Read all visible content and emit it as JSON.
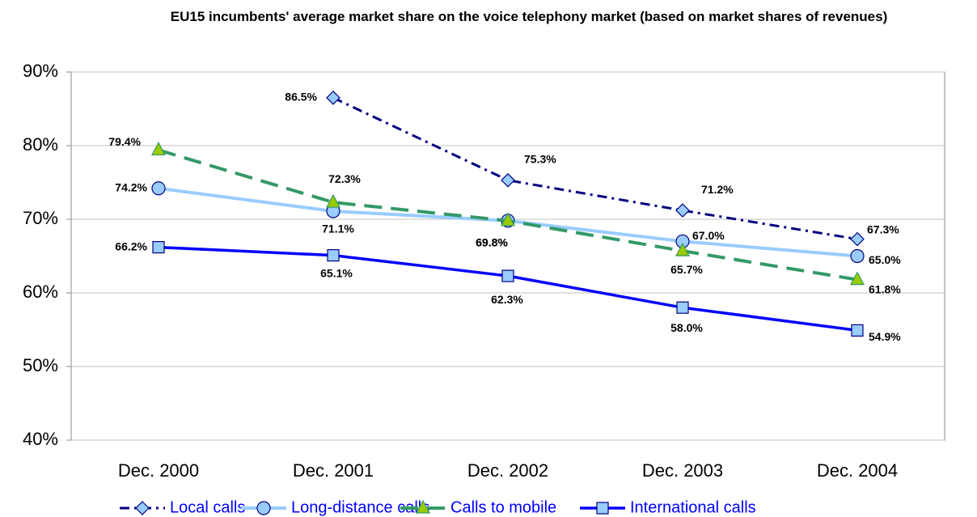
{
  "chart_data": {
    "type": "line",
    "title": "EU15 incumbents' average market share on the voice telephony market (based on market shares of revenues)",
    "categories": [
      "Dec. 2000",
      "Dec. 2001",
      "Dec. 2002",
      "Dec. 2003",
      "Dec. 2004"
    ],
    "ylim": [
      40,
      90
    ],
    "yticks": [
      {
        "value": 40,
        "label": "40%"
      },
      {
        "value": 50,
        "label": "50%"
      },
      {
        "value": 60,
        "label": "60%"
      },
      {
        "value": 70,
        "label": "70%"
      },
      {
        "value": 80,
        "label": "80%"
      },
      {
        "value": 90,
        "label": "90%"
      }
    ],
    "grid": true,
    "legend": "bottom",
    "series": [
      {
        "name": "Local calls",
        "color": "#000080",
        "marker": "diamond",
        "marker_fill": "#99ccff",
        "dash": "dash-dot",
        "values": [
          null,
          86.5,
          75.3,
          71.2,
          67.3
        ],
        "value_labels": [
          null,
          "86.5%",
          "75.3%",
          "71.2%",
          "67.3%"
        ]
      },
      {
        "name": "Long-distance calls",
        "color": "#99ccff",
        "marker": "circle",
        "marker_fill": "#99ccff",
        "dash": "solid",
        "values": [
          74.2,
          71.1,
          69.8,
          67.0,
          65.0
        ],
        "value_labels": [
          "74.2%",
          "71.1%",
          "69.8%",
          "67.0%",
          "65.0%"
        ]
      },
      {
        "name": "Calls to mobile",
        "color": "#339966",
        "marker": "triangle",
        "marker_fill": "#99cc00",
        "dash": "dashed",
        "values": [
          79.4,
          72.3,
          69.8,
          65.7,
          61.8
        ],
        "value_labels": [
          "79.4%",
          "72.3%",
          "69.8%",
          "65.7%",
          "61.8%"
        ]
      },
      {
        "name": "International calls",
        "color": "#0000ff",
        "marker": "square",
        "marker_fill": "#99ccff",
        "dash": "solid",
        "values": [
          66.2,
          65.1,
          62.3,
          58.0,
          54.9
        ],
        "value_labels": [
          "66.2%",
          "65.1%",
          "62.3%",
          "58.0%",
          "54.9%"
        ]
      }
    ]
  }
}
